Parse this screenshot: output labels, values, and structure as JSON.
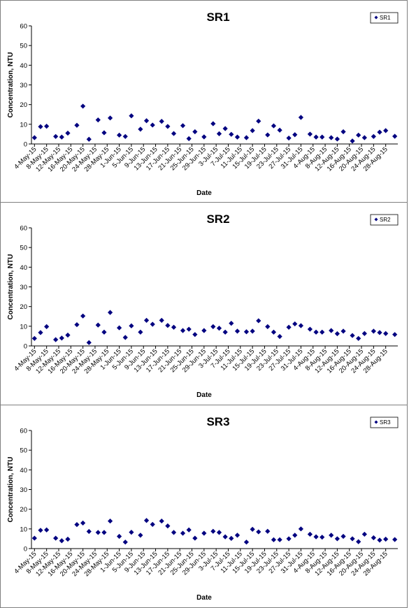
{
  "chart_data": [
    {
      "type": "scatter",
      "title": "SR1",
      "xlabel": "Date",
      "ylabel": "Concentration, NTU",
      "ylim": [
        0,
        60
      ],
      "yticks": [
        0,
        10,
        20,
        30,
        40,
        50,
        60
      ],
      "xlim": [
        "2015-05-03",
        "2015-09-01"
      ],
      "xticks": [
        "4-May-15",
        "8-May-15",
        "12-May-15",
        "16-May-15",
        "20-May-15",
        "24-May-15",
        "28-May-15",
        "1-Jun-15",
        "5-Jun-15",
        "9-Jun-15",
        "13-Jun-15",
        "17-Jun-15",
        "21-Jun-15",
        "25-Jun-15",
        "29-Jun-15",
        "3-Jul-15",
        "7-Jul-15",
        "11-Jul-15",
        "15-Jul-15",
        "19-Jul-15",
        "23-Jul-15",
        "27-Jul-15",
        "31-Jul-15",
        "4-Aug-15",
        "8-Aug-15",
        "12-Aug-15",
        "16-Aug-15",
        "20-Aug-15",
        "24-Aug-15",
        "28-Aug-15"
      ],
      "legend_placement": "top-right",
      "grid": false,
      "marker_color": "#000080",
      "series": [
        {
          "name": "SR1",
          "points": [
            {
              "x": "2015-05-04",
              "y": 3.2
            },
            {
              "x": "2015-05-06",
              "y": 8.8
            },
            {
              "x": "2015-05-08",
              "y": 9.0
            },
            {
              "x": "2015-05-11",
              "y": 3.8
            },
            {
              "x": "2015-05-13",
              "y": 3.5
            },
            {
              "x": "2015-05-15",
              "y": 5.5
            },
            {
              "x": "2015-05-18",
              "y": 9.5
            },
            {
              "x": "2015-05-20",
              "y": 19.2
            },
            {
              "x": "2015-05-22",
              "y": 2.4
            },
            {
              "x": "2015-05-25",
              "y": 12.2
            },
            {
              "x": "2015-05-27",
              "y": 5.7
            },
            {
              "x": "2015-05-29",
              "y": 13.2
            },
            {
              "x": "2015-06-01",
              "y": 4.5
            },
            {
              "x": "2015-06-03",
              "y": 3.8
            },
            {
              "x": "2015-06-05",
              "y": 14.3
            },
            {
              "x": "2015-06-08",
              "y": 7.5
            },
            {
              "x": "2015-06-10",
              "y": 11.8
            },
            {
              "x": "2015-06-12",
              "y": 9.6
            },
            {
              "x": "2015-06-15",
              "y": 11.5
            },
            {
              "x": "2015-06-17",
              "y": 8.9
            },
            {
              "x": "2015-06-19",
              "y": 5.3
            },
            {
              "x": "2015-06-22",
              "y": 9.3
            },
            {
              "x": "2015-06-24",
              "y": 2.7
            },
            {
              "x": "2015-06-26",
              "y": 6.2
            },
            {
              "x": "2015-06-29",
              "y": 3.6
            },
            {
              "x": "2015-07-02",
              "y": 10.3
            },
            {
              "x": "2015-07-04",
              "y": 5.2
            },
            {
              "x": "2015-07-06",
              "y": 7.8
            },
            {
              "x": "2015-07-08",
              "y": 4.9
            },
            {
              "x": "2015-07-10",
              "y": 3.5
            },
            {
              "x": "2015-07-13",
              "y": 3.2
            },
            {
              "x": "2015-07-15",
              "y": 6.8
            },
            {
              "x": "2015-07-17",
              "y": 11.6
            },
            {
              "x": "2015-07-20",
              "y": 4.6
            },
            {
              "x": "2015-07-22",
              "y": 9.2
            },
            {
              "x": "2015-07-24",
              "y": 7.0
            },
            {
              "x": "2015-07-27",
              "y": 3.0
            },
            {
              "x": "2015-07-29",
              "y": 4.7
            },
            {
              "x": "2015-07-31",
              "y": 13.5
            },
            {
              "x": "2015-08-03",
              "y": 5.0
            },
            {
              "x": "2015-08-05",
              "y": 3.5
            },
            {
              "x": "2015-08-07",
              "y": 3.5
            },
            {
              "x": "2015-08-10",
              "y": 3.2
            },
            {
              "x": "2015-08-12",
              "y": 2.5
            },
            {
              "x": "2015-08-14",
              "y": 6.2
            },
            {
              "x": "2015-08-17",
              "y": 1.5
            },
            {
              "x": "2015-08-19",
              "y": 4.5
            },
            {
              "x": "2015-08-21",
              "y": 3.2
            },
            {
              "x": "2015-08-24",
              "y": 3.8
            },
            {
              "x": "2015-08-26",
              "y": 6.0
            },
            {
              "x": "2015-08-28",
              "y": 6.8
            },
            {
              "x": "2015-08-31",
              "y": 3.9
            }
          ]
        }
      ]
    },
    {
      "type": "scatter",
      "title": "SR2",
      "xlabel": "Date",
      "ylabel": "Concentration, NTU",
      "ylim": [
        0,
        60
      ],
      "yticks": [
        0,
        10,
        20,
        30,
        40,
        50,
        60
      ],
      "xlim": [
        "2015-05-03",
        "2015-09-01"
      ],
      "xticks": [
        "4-May-15",
        "8-May-15",
        "12-May-15",
        "16-May-15",
        "20-May-15",
        "24-May-15",
        "28-May-15",
        "1-Jun-15",
        "5-Jun-15",
        "9-Jun-15",
        "13-Jun-15",
        "17-Jun-15",
        "21-Jun-15",
        "25-Jun-15",
        "29-Jun-15",
        "3-Jul-15",
        "7-Jul-15",
        "11-Jul-15",
        "15-Jul-15",
        "19-Jul-15",
        "23-Jul-15",
        "27-Jul-15",
        "31-Jul-15",
        "4-Aug-15",
        "8-Aug-15",
        "12-Aug-15",
        "16-Aug-15",
        "20-Aug-15",
        "24-Aug-15",
        "28-Aug-15"
      ],
      "legend_placement": "top-right",
      "grid": false,
      "marker_color": "#000080",
      "series": [
        {
          "name": "SR2",
          "points": [
            {
              "x": "2015-05-04",
              "y": 3.8
            },
            {
              "x": "2015-05-06",
              "y": 6.8
            },
            {
              "x": "2015-05-08",
              "y": 9.8
            },
            {
              "x": "2015-05-11",
              "y": 3.2
            },
            {
              "x": "2015-05-13",
              "y": 4.0
            },
            {
              "x": "2015-05-15",
              "y": 5.5
            },
            {
              "x": "2015-05-18",
              "y": 10.8
            },
            {
              "x": "2015-05-20",
              "y": 15.2
            },
            {
              "x": "2015-05-22",
              "y": 1.7
            },
            {
              "x": "2015-05-25",
              "y": 10.6
            },
            {
              "x": "2015-05-27",
              "y": 7.0
            },
            {
              "x": "2015-05-29",
              "y": 17.0
            },
            {
              "x": "2015-06-01",
              "y": 9.2
            },
            {
              "x": "2015-06-03",
              "y": 4.3
            },
            {
              "x": "2015-06-05",
              "y": 10.2
            },
            {
              "x": "2015-06-08",
              "y": 7.0
            },
            {
              "x": "2015-06-10",
              "y": 13.0
            },
            {
              "x": "2015-06-12",
              "y": 11.0
            },
            {
              "x": "2015-06-15",
              "y": 13.0
            },
            {
              "x": "2015-06-17",
              "y": 10.4
            },
            {
              "x": "2015-06-19",
              "y": 9.5
            },
            {
              "x": "2015-06-22",
              "y": 7.8
            },
            {
              "x": "2015-06-24",
              "y": 8.5
            },
            {
              "x": "2015-06-26",
              "y": 5.8
            },
            {
              "x": "2015-06-29",
              "y": 7.8
            },
            {
              "x": "2015-07-02",
              "y": 9.8
            },
            {
              "x": "2015-07-04",
              "y": 9.0
            },
            {
              "x": "2015-07-06",
              "y": 7.0
            },
            {
              "x": "2015-07-08",
              "y": 11.5
            },
            {
              "x": "2015-07-10",
              "y": 7.5
            },
            {
              "x": "2015-07-13",
              "y": 7.2
            },
            {
              "x": "2015-07-15",
              "y": 7.5
            },
            {
              "x": "2015-07-17",
              "y": 12.8
            },
            {
              "x": "2015-07-20",
              "y": 9.8
            },
            {
              "x": "2015-07-22",
              "y": 7.0
            },
            {
              "x": "2015-07-24",
              "y": 4.8
            },
            {
              "x": "2015-07-27",
              "y": 9.5
            },
            {
              "x": "2015-07-29",
              "y": 11.2
            },
            {
              "x": "2015-07-31",
              "y": 10.3
            },
            {
              "x": "2015-08-03",
              "y": 8.5
            },
            {
              "x": "2015-08-05",
              "y": 7.0
            },
            {
              "x": "2015-08-07",
              "y": 7.0
            },
            {
              "x": "2015-08-10",
              "y": 7.8
            },
            {
              "x": "2015-08-12",
              "y": 6.2
            },
            {
              "x": "2015-08-14",
              "y": 7.5
            },
            {
              "x": "2015-08-17",
              "y": 5.3
            },
            {
              "x": "2015-08-19",
              "y": 3.8
            },
            {
              "x": "2015-08-21",
              "y": 6.3
            },
            {
              "x": "2015-08-24",
              "y": 7.5
            },
            {
              "x": "2015-08-26",
              "y": 6.8
            },
            {
              "x": "2015-08-28",
              "y": 6.3
            },
            {
              "x": "2015-08-31",
              "y": 5.8
            }
          ]
        }
      ]
    },
    {
      "type": "scatter",
      "title": "SR3",
      "xlabel": "Date",
      "ylabel": "Concentration, NTU",
      "ylim": [
        0,
        60
      ],
      "yticks": [
        0,
        10,
        20,
        30,
        40,
        50,
        60
      ],
      "xlim": [
        "2015-05-03",
        "2015-09-01"
      ],
      "xticks": [
        "4-May-15",
        "8-May-15",
        "12-May-15",
        "16-May-15",
        "20-May-15",
        "24-May-15",
        "28-May-15",
        "1-Jun-15",
        "5-Jun-15",
        "9-Jun-15",
        "13-Jun-15",
        "17-Jun-15",
        "21-Jun-15",
        "25-Jun-15",
        "29-Jun-15",
        "3-Jul-15",
        "7-Jul-15",
        "11-Jul-15",
        "15-Jul-15",
        "19-Jul-15",
        "23-Jul-15",
        "27-Jul-15",
        "31-Jul-15",
        "4-Aug-15",
        "8-Aug-15",
        "12-Aug-15",
        "16-Aug-15",
        "20-Aug-15",
        "24-Aug-15",
        "28-Aug-15"
      ],
      "legend_placement": "top-right",
      "grid": false,
      "marker_color": "#000080",
      "series": [
        {
          "name": "SR3",
          "points": [
            {
              "x": "2015-05-04",
              "y": 5.3
            },
            {
              "x": "2015-05-06",
              "y": 9.3
            },
            {
              "x": "2015-05-08",
              "y": 9.5
            },
            {
              "x": "2015-05-11",
              "y": 5.3
            },
            {
              "x": "2015-05-13",
              "y": 4.0
            },
            {
              "x": "2015-05-15",
              "y": 4.8
            },
            {
              "x": "2015-05-18",
              "y": 12.2
            },
            {
              "x": "2015-05-20",
              "y": 13.0
            },
            {
              "x": "2015-05-22",
              "y": 8.7
            },
            {
              "x": "2015-05-25",
              "y": 8.2
            },
            {
              "x": "2015-05-27",
              "y": 8.2
            },
            {
              "x": "2015-05-29",
              "y": 14.0
            },
            {
              "x": "2015-06-01",
              "y": 6.2
            },
            {
              "x": "2015-06-03",
              "y": 3.3
            },
            {
              "x": "2015-06-05",
              "y": 8.3
            },
            {
              "x": "2015-06-08",
              "y": 6.8
            },
            {
              "x": "2015-06-10",
              "y": 14.3
            },
            {
              "x": "2015-06-12",
              "y": 12.3
            },
            {
              "x": "2015-06-15",
              "y": 14.0
            },
            {
              "x": "2015-06-17",
              "y": 11.5
            },
            {
              "x": "2015-06-19",
              "y": 8.2
            },
            {
              "x": "2015-06-22",
              "y": 7.8
            },
            {
              "x": "2015-06-24",
              "y": 9.5
            },
            {
              "x": "2015-06-26",
              "y": 5.3
            },
            {
              "x": "2015-06-29",
              "y": 7.8
            },
            {
              "x": "2015-07-02",
              "y": 8.8
            },
            {
              "x": "2015-07-04",
              "y": 8.2
            },
            {
              "x": "2015-07-06",
              "y": 6.0
            },
            {
              "x": "2015-07-08",
              "y": 5.2
            },
            {
              "x": "2015-07-10",
              "y": 6.8
            },
            {
              "x": "2015-07-13",
              "y": 3.3
            },
            {
              "x": "2015-07-15",
              "y": 9.8
            },
            {
              "x": "2015-07-17",
              "y": 8.5
            },
            {
              "x": "2015-07-20",
              "y": 8.8
            },
            {
              "x": "2015-07-22",
              "y": 4.5
            },
            {
              "x": "2015-07-24",
              "y": 4.5
            },
            {
              "x": "2015-07-27",
              "y": 5.0
            },
            {
              "x": "2015-07-29",
              "y": 6.8
            },
            {
              "x": "2015-07-31",
              "y": 10.0
            },
            {
              "x": "2015-08-03",
              "y": 7.3
            },
            {
              "x": "2015-08-05",
              "y": 6.0
            },
            {
              "x": "2015-08-07",
              "y": 5.8
            },
            {
              "x": "2015-08-10",
              "y": 6.8
            },
            {
              "x": "2015-08-12",
              "y": 5.0
            },
            {
              "x": "2015-08-14",
              "y": 6.2
            },
            {
              "x": "2015-08-17",
              "y": 5.0
            },
            {
              "x": "2015-08-19",
              "y": 3.5
            },
            {
              "x": "2015-08-21",
              "y": 7.3
            },
            {
              "x": "2015-08-24",
              "y": 5.5
            },
            {
              "x": "2015-08-26",
              "y": 4.3
            },
            {
              "x": "2015-08-28",
              "y": 4.8
            },
            {
              "x": "2015-08-31",
              "y": 4.6
            }
          ]
        }
      ]
    }
  ]
}
